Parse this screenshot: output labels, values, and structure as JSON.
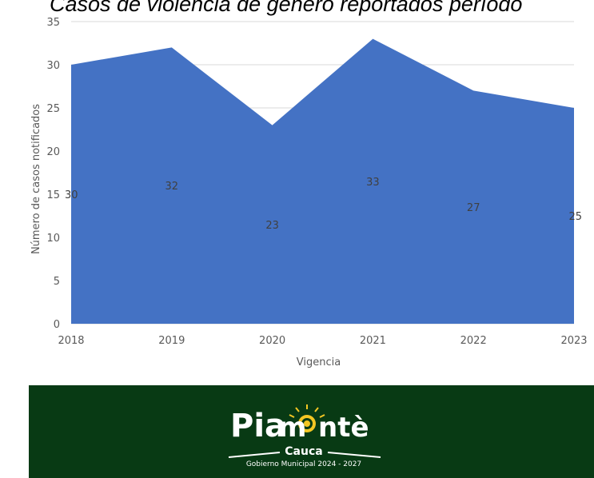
{
  "chart_data": {
    "type": "area",
    "title": "Casos de violencia de género reportados período",
    "xlabel": "Vigencia",
    "ylabel": "Número de casos notificados",
    "x": [
      "2018",
      "2019",
      "2020",
      "2021",
      "2022",
      "2023"
    ],
    "series": [
      {
        "values": [
          30,
          32,
          23,
          33,
          27,
          25
        ],
        "color": "#4472c4"
      }
    ],
    "ylim": [
      0,
      35
    ],
    "yticks": [
      0,
      5,
      10,
      15,
      20,
      25,
      30,
      35
    ],
    "grid": true,
    "legend": "none"
  },
  "footer": {
    "logo_name": "Piamontè",
    "logo_region": "Cauca",
    "logo_tagline": "Gobierno Municipal 2024 - 2027",
    "background_color": "#083a14"
  }
}
